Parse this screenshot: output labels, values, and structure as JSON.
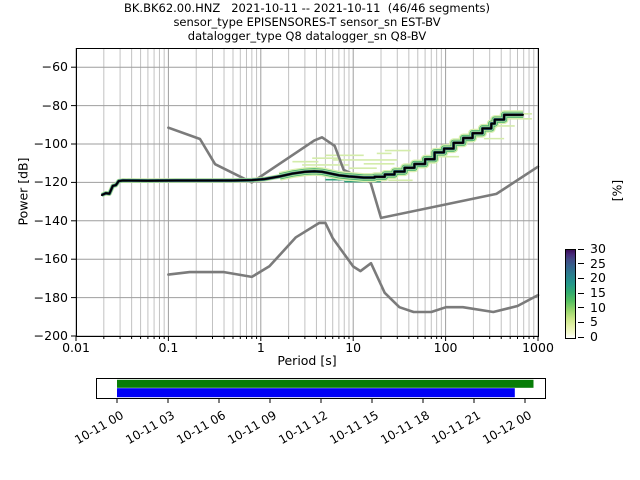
{
  "chart_data": {
    "type": "line",
    "title_line1": "BK.BK62.00.HNZ   2021-10-11 -- 2021-10-11  (46/46 segments)",
    "title_line2": "sensor_type EPISENSORES-T sensor_sn EST-BV",
    "title_line3": "datalogger_type Q8 datalogger_sn Q8-BV",
    "xlabel": "Period [s]",
    "ylabel": "Power [dB]",
    "x_scale": "log",
    "xlim": [
      0.01,
      1000
    ],
    "ylim": [
      -200,
      -50
    ],
    "grid": true,
    "grid_major_color": "#9e9e9e",
    "grid_minor_color": "#c2c2c2",
    "x_ticks": [
      {
        "value": 0.01,
        "label": "0.01"
      },
      {
        "value": 0.1,
        "label": "0.1"
      },
      {
        "value": 1,
        "label": "1"
      },
      {
        "value": 10,
        "label": "10"
      },
      {
        "value": 100,
        "label": "100"
      },
      {
        "value": 1000,
        "label": "1000"
      }
    ],
    "y_ticks": [
      {
        "value": -60,
        "label": "−60"
      },
      {
        "value": -80,
        "label": "−80"
      },
      {
        "value": -100,
        "label": "−100"
      },
      {
        "value": -120,
        "label": "−120"
      },
      {
        "value": -140,
        "label": "−140"
      },
      {
        "value": -160,
        "label": "−160"
      },
      {
        "value": -180,
        "label": "−180"
      },
      {
        "value": -200,
        "label": "−200"
      }
    ],
    "colorbar": {
      "label": "[%]",
      "vmin": 0,
      "vmax": 30,
      "ticks": [
        {
          "value": 0,
          "label": "0"
        },
        {
          "value": 5,
          "label": "5"
        },
        {
          "value": 10,
          "label": "10"
        },
        {
          "value": 15,
          "label": "15"
        },
        {
          "value": 20,
          "label": "20"
        },
        {
          "value": 25,
          "label": "25"
        },
        {
          "value": 30,
          "label": "30"
        }
      ],
      "gradient_bottom_to_top": [
        "#ffffff",
        "#e5f2ab",
        "#94d46a",
        "#32ab6f",
        "#23968a",
        "#35648d",
        "#472a7a",
        "#3b0f57"
      ]
    },
    "series": [
      {
        "name": "noise-model-high-NHNM",
        "color": "#7b7b7b",
        "width": 2.6,
        "points": [
          [
            0.1,
            -91.5
          ],
          [
            0.22,
            -97.4
          ],
          [
            0.32,
            -110.5
          ],
          [
            0.8,
            -120
          ],
          [
            3.8,
            -98.1
          ],
          [
            4.6,
            -96.5
          ],
          [
            6.3,
            -101
          ],
          [
            7.9,
            -113.5
          ],
          [
            15.4,
            -120
          ],
          [
            20,
            -138.5
          ],
          [
            354.8,
            -126
          ],
          [
            1000,
            -111.8
          ]
        ]
      },
      {
        "name": "noise-model-low-NLNM",
        "color": "#7b7b7b",
        "width": 2.6,
        "points": [
          [
            0.1,
            -168
          ],
          [
            0.17,
            -166.7
          ],
          [
            0.4,
            -166.7
          ],
          [
            0.8,
            -169.2
          ],
          [
            1.24,
            -163.7
          ],
          [
            2.4,
            -148.6
          ],
          [
            4.3,
            -141.1
          ],
          [
            5,
            -141.1
          ],
          [
            6,
            -149
          ],
          [
            10,
            -163.8
          ],
          [
            12,
            -166.2
          ],
          [
            15.6,
            -162.1
          ],
          [
            21.9,
            -177.5
          ],
          [
            31.6,
            -185
          ],
          [
            45,
            -187.5
          ],
          [
            70,
            -187.5
          ],
          [
            101,
            -185
          ],
          [
            154,
            -185
          ],
          [
            328,
            -187.5
          ],
          [
            600,
            -184.4
          ],
          [
            1000,
            -178.7
          ]
        ]
      },
      {
        "name": "psd-histogram-band",
        "color": null,
        "width": 0,
        "halo": [
          {
            "color": "#d9efae",
            "width": 9
          },
          {
            "color": "#3fae6c",
            "width": 6.2
          },
          {
            "color": "#2e2060",
            "width": 3.6
          }
        ],
        "points": [
          [
            1.6,
            -116.9
          ],
          [
            2.2,
            -115.4
          ],
          [
            3.0,
            -114.5
          ],
          [
            3.8,
            -114.2
          ],
          [
            4.6,
            -114.5
          ],
          [
            5.6,
            -115.3
          ],
          [
            7,
            -116.3
          ],
          [
            9,
            -116.9
          ],
          [
            11,
            -117.2
          ],
          [
            13,
            -117.5
          ],
          [
            17,
            -117.5
          ],
          [
            17,
            -117.1
          ],
          [
            22,
            -117.1
          ],
          [
            22,
            -115.9
          ],
          [
            28,
            -115.9
          ],
          [
            28,
            -114.4
          ],
          [
            36,
            -114.4
          ],
          [
            36,
            -112.4
          ],
          [
            46,
            -112.4
          ],
          [
            46,
            -110.4
          ],
          [
            60,
            -110.4
          ],
          [
            60,
            -107.9
          ],
          [
            76,
            -107.9
          ],
          [
            76,
            -104.4
          ],
          [
            96,
            -104.4
          ],
          [
            96,
            -102.4
          ],
          [
            122,
            -102.4
          ],
          [
            122,
            -99.4
          ],
          [
            155,
            -99.4
          ],
          [
            155,
            -96.9
          ],
          [
            196,
            -96.9
          ],
          [
            196,
            -94.4
          ],
          [
            250,
            -94.4
          ],
          [
            250,
            -91.9
          ],
          [
            312,
            -91.9
          ],
          [
            312,
            -89.4
          ],
          [
            340,
            -89.4
          ],
          [
            340,
            -87.3
          ],
          [
            430,
            -87.3
          ],
          [
            430,
            -84.8
          ],
          [
            690,
            -84.8
          ]
        ]
      },
      {
        "name": "psd-mode-line",
        "color": "#000000",
        "width": 1.8,
        "halo": [
          {
            "color": "#bfe49b",
            "width": 4.6
          },
          {
            "color": "#2f9e7d",
            "width": 3.2
          },
          {
            "color": "#2e2060",
            "width": 2.4
          }
        ],
        "points": [
          [
            0.019,
            -126.6
          ],
          [
            0.021,
            -125.6
          ],
          [
            0.023,
            -125.9
          ],
          [
            0.025,
            -121.8
          ],
          [
            0.027,
            -121.4
          ],
          [
            0.029,
            -119.3
          ],
          [
            0.032,
            -119.0
          ],
          [
            0.06,
            -119.1
          ],
          [
            0.12,
            -119.0
          ],
          [
            0.25,
            -119.0
          ],
          [
            0.5,
            -119.0
          ],
          [
            0.8,
            -118.8
          ],
          [
            1.1,
            -118.3
          ],
          [
            1.6,
            -116.9
          ],
          [
            2.2,
            -115.4
          ],
          [
            3.0,
            -114.5
          ],
          [
            3.8,
            -114.2
          ],
          [
            4.6,
            -114.5
          ],
          [
            5.6,
            -115.3
          ],
          [
            7,
            -116.3
          ],
          [
            9,
            -116.9
          ],
          [
            11,
            -117.2
          ],
          [
            13,
            -117.5
          ],
          [
            17,
            -117.5
          ],
          [
            17,
            -117.1
          ],
          [
            22,
            -117.1
          ],
          [
            22,
            -115.9
          ],
          [
            28,
            -115.9
          ],
          [
            28,
            -114.4
          ],
          [
            36,
            -114.4
          ],
          [
            36,
            -112.4
          ],
          [
            46,
            -112.4
          ],
          [
            46,
            -110.4
          ],
          [
            60,
            -110.4
          ],
          [
            60,
            -107.9
          ],
          [
            76,
            -107.9
          ],
          [
            76,
            -104.4
          ],
          [
            96,
            -104.4
          ],
          [
            96,
            -102.4
          ],
          [
            122,
            -102.4
          ],
          [
            122,
            -99.4
          ],
          [
            155,
            -99.4
          ],
          [
            155,
            -96.9
          ],
          [
            196,
            -96.9
          ],
          [
            196,
            -94.4
          ],
          [
            250,
            -94.4
          ],
          [
            250,
            -91.9
          ],
          [
            312,
            -91.9
          ],
          [
            312,
            -89.4
          ],
          [
            340,
            -89.4
          ],
          [
            340,
            -87.3
          ],
          [
            430,
            -87.3
          ],
          [
            430,
            -84.8
          ],
          [
            690,
            -84.8
          ]
        ]
      }
    ],
    "scatter_segments": [
      {
        "from": 2.2,
        "to": 4.2,
        "db": -109.2,
        "color": "#d4ecab"
      },
      {
        "from": 2.8,
        "to": 9,
        "db": -110.9,
        "color": "#d4ecab"
      },
      {
        "from": 3.6,
        "to": 7,
        "db": -107.4,
        "color": "#d4ecab"
      },
      {
        "from": 5,
        "to": 13,
        "db": -105.9,
        "color": "#d4ecab"
      },
      {
        "from": 6,
        "to": 30,
        "db": -108.3,
        "color": "#d4ecab"
      },
      {
        "from": 9,
        "to": 18,
        "db": -112.6,
        "color": "#d4ecab"
      },
      {
        "from": 13,
        "to": 28,
        "db": -110.3,
        "color": "#d4ecab"
      },
      {
        "from": 18,
        "to": 26,
        "db": -104.9,
        "color": "#d4ecab"
      },
      {
        "from": 22,
        "to": 42,
        "db": -103.4,
        "color": "#d4ecab"
      },
      {
        "from": 24,
        "to": 44,
        "db": -118.9,
        "color": "#d4ecab"
      },
      {
        "from": 8,
        "to": 20,
        "db": -119.6,
        "color": "#2f9e7d"
      },
      {
        "from": 5,
        "to": 9,
        "db": -118.6,
        "color": "#2f9e7d"
      },
      {
        "from": 80,
        "to": 140,
        "db": -106.6,
        "color": "#d4ecab"
      },
      {
        "from": 260,
        "to": 430,
        "db": -97.2,
        "color": "#d4ecab"
      },
      {
        "from": 340,
        "to": 560,
        "db": -90.6,
        "color": "#d4ecab"
      },
      {
        "from": 430,
        "to": 860,
        "db": -86.9,
        "color": "#d4ecab"
      },
      {
        "from": 520,
        "to": 860,
        "db": -84.3,
        "color": "#d4ecab"
      }
    ]
  },
  "timeline": {
    "tick_labels": [
      "10-11 00",
      "10-11 03",
      "10-11 06",
      "10-11 09",
      "10-11 12",
      "10-11 15",
      "10-11 18",
      "10-11 21",
      "10-12 00"
    ],
    "hours_per_tick": 3,
    "bars": [
      {
        "name": "coverage-bar-top",
        "color": "#077d07",
        "start_h": 0,
        "end_h": 24.5
      },
      {
        "name": "coverage-bar-bottom",
        "color": "#0000f5",
        "start_h": 0,
        "end_h": 23.4
      }
    ]
  }
}
